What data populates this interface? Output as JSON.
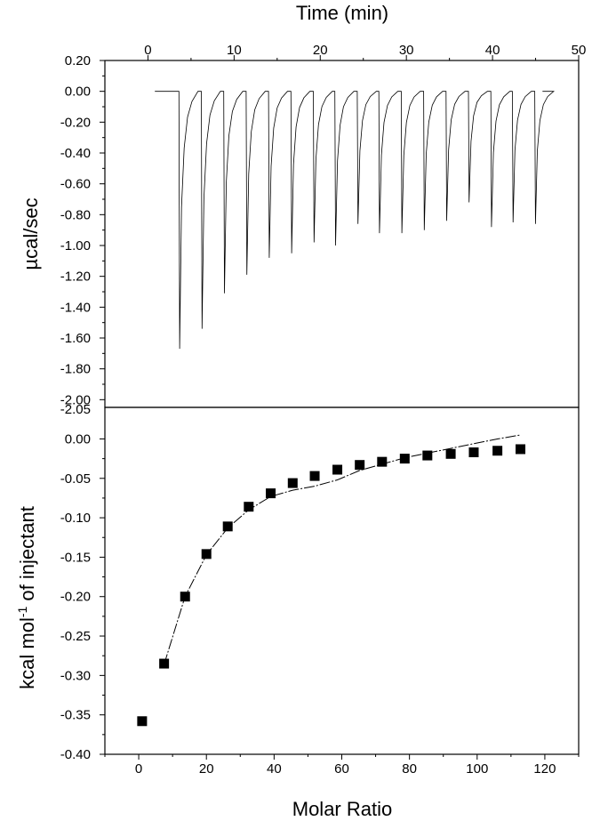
{
  "chart_data": [
    {
      "type": "line",
      "panel": "top",
      "xlabel": "Time (min)",
      "ylabel": "µcal/sec",
      "xlim": [
        -5,
        50
      ],
      "ylim": [
        -2.05,
        0.2
      ],
      "x_ticks": [
        "0",
        "10",
        "20",
        "30",
        "40",
        "50"
      ],
      "x_tick_values": [
        0,
        10,
        20,
        30,
        40,
        50
      ],
      "y_ticks": [
        "0.20",
        "0.00",
        "-0.20",
        "-0.40",
        "-0.60",
        "-0.80",
        "-1.00",
        "-1.20",
        "-1.40",
        "-1.60",
        "-1.80",
        "-2.00"
      ],
      "y_tick_values": [
        0.2,
        0.0,
        -0.2,
        -0.4,
        -0.6,
        -0.8,
        -1.0,
        -1.2,
        -1.4,
        -1.6,
        -1.8,
        -2.0
      ],
      "bottom_tick_label": "-2.05",
      "baseline": 0.0,
      "trace_start": 0.8,
      "trace_end": 45.8,
      "injection_times": [
        3.6,
        6.2,
        8.8,
        11.4,
        14.0,
        16.6,
        19.2,
        21.7,
        24.3,
        26.8,
        29.4,
        32.0,
        34.6,
        37.2,
        39.8,
        42.3,
        44.9
      ],
      "peak_values": [
        -1.67,
        -1.54,
        -1.31,
        -1.19,
        -1.08,
        -1.05,
        -0.98,
        -1.0,
        -0.86,
        -0.92,
        -0.92,
        -0.9,
        -0.84,
        -0.72,
        -0.88,
        -0.85,
        -0.86
      ]
    },
    {
      "type": "scatter",
      "panel": "bottom",
      "xlabel": "Molar Ratio",
      "ylabel": "kcal mol-1 of injectant",
      "xlim": [
        -10,
        130
      ],
      "ylim": [
        -0.4,
        0.04
      ],
      "x_ticks": [
        "0",
        "20",
        "40",
        "60",
        "80",
        "100",
        "120"
      ],
      "x_tick_values": [
        0,
        20,
        40,
        60,
        80,
        100,
        120
      ],
      "y_ticks": [
        "0.00",
        "-0.05",
        "-0.10",
        "-0.15",
        "-0.20",
        "-0.25",
        "-0.30",
        "-0.35",
        "-0.40"
      ],
      "y_tick_values": [
        0.0,
        -0.05,
        -0.1,
        -0.15,
        -0.2,
        -0.25,
        -0.3,
        -0.35,
        -0.4
      ],
      "points": {
        "x": [
          1.0,
          7.5,
          13.7,
          20.0,
          26.3,
          32.5,
          39.0,
          45.5,
          52.0,
          58.7,
          65.3,
          71.9,
          78.6,
          85.3,
          92.2,
          99.0,
          106.0,
          112.8
        ],
        "y": [
          -0.358,
          -0.285,
          -0.2,
          -0.146,
          -0.111,
          -0.086,
          -0.069,
          -0.056,
          -0.047,
          -0.039,
          -0.033,
          -0.029,
          -0.025,
          -0.021,
          -0.019,
          -0.017,
          -0.015,
          -0.013
        ]
      },
      "fit_line": {
        "x": [
          7.5,
          13.7,
          20.0,
          26.3,
          32.5,
          39.0,
          45.5,
          52.0,
          58.7,
          65.3,
          71.9,
          78.6,
          85.3,
          92.2,
          99.0,
          106.0,
          112.8
        ],
        "y": [
          -0.286,
          -0.2,
          -0.147,
          -0.113,
          -0.09,
          -0.073,
          -0.065,
          -0.06,
          -0.052,
          -0.04,
          -0.032,
          -0.024,
          -0.018,
          -0.012,
          -0.006,
          0.0,
          0.005
        ]
      }
    }
  ]
}
